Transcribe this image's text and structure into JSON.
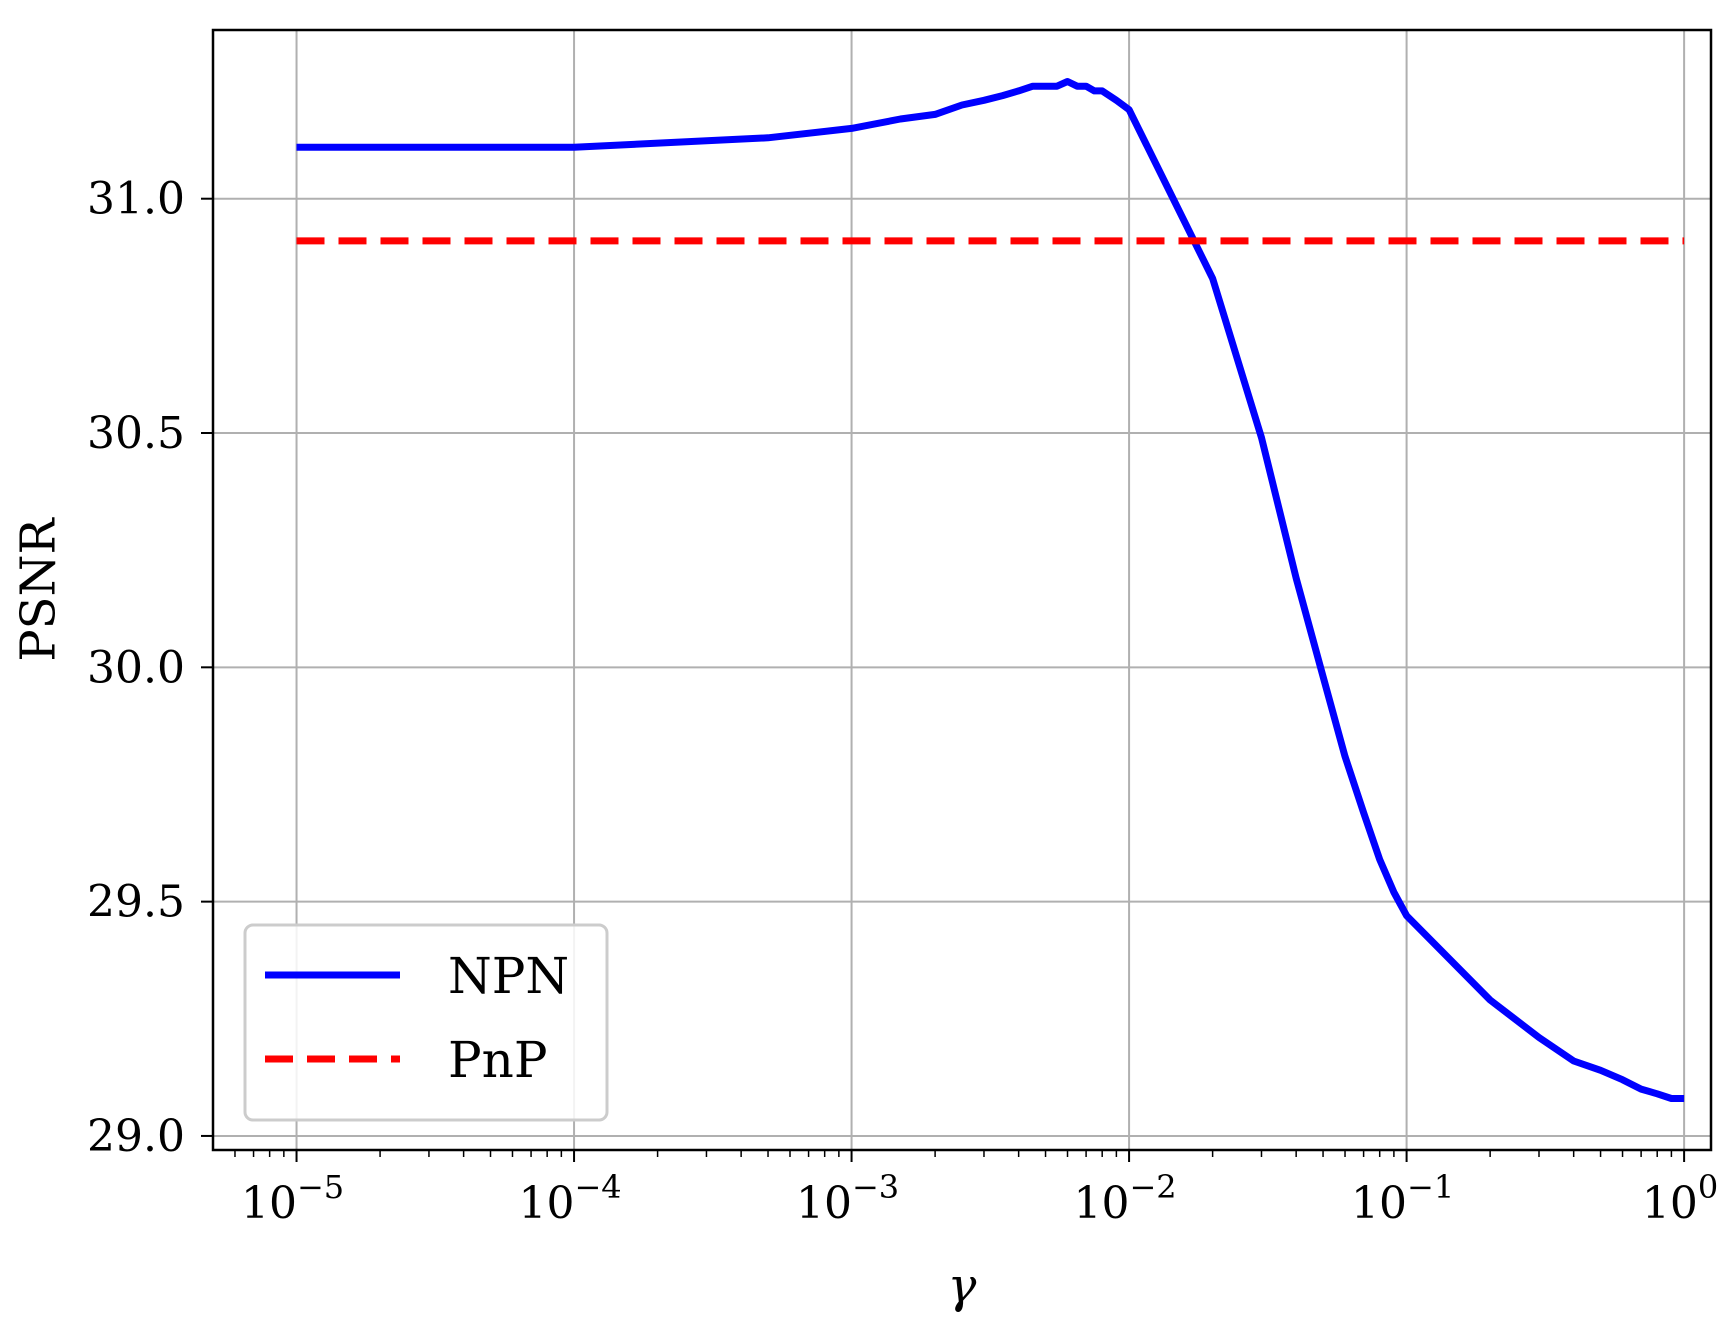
{
  "chart_data": {
    "type": "line",
    "title": "",
    "xlabel": "γ",
    "ylabel": "PSNR",
    "x_scale": "log",
    "xlim": [
      5e-06,
      1.25
    ],
    "ylim": [
      28.97,
      31.36
    ],
    "x_ticks": [
      {
        "value": 1e-05,
        "base": "10",
        "exp": "−5"
      },
      {
        "value": 0.0001,
        "base": "10",
        "exp": "−4"
      },
      {
        "value": 0.001,
        "base": "10",
        "exp": "−3"
      },
      {
        "value": 0.01,
        "base": "10",
        "exp": "−2"
      },
      {
        "value": 0.1,
        "base": "10",
        "exp": "−1"
      },
      {
        "value": 1,
        "base": "10",
        "exp": "0"
      }
    ],
    "y_ticks": [
      {
        "value": 29.0,
        "label": "29.0"
      },
      {
        "value": 29.5,
        "label": "29.5"
      },
      {
        "value": 30.0,
        "label": "30.0"
      },
      {
        "value": 30.5,
        "label": "30.5"
      },
      {
        "value": 31.0,
        "label": "31.0"
      }
    ],
    "grid": true,
    "legend_position": "lower-left",
    "series": [
      {
        "name": "NPN",
        "color": "#0000ff",
        "style": "solid",
        "x": [
          1e-05,
          0.0001,
          0.0005,
          0.001,
          0.0015,
          0.002,
          0.0025,
          0.003,
          0.0035,
          0.004,
          0.0045,
          0.005,
          0.0055,
          0.006,
          0.0065,
          0.007,
          0.0075,
          0.008,
          0.009,
          0.01,
          0.02,
          0.03,
          0.04,
          0.05,
          0.06,
          0.07,
          0.08,
          0.09,
          0.1,
          0.2,
          0.3,
          0.4,
          0.5,
          0.6,
          0.7,
          0.8,
          0.9,
          1.0
        ],
        "y": [
          31.11,
          31.11,
          31.13,
          31.15,
          31.17,
          31.18,
          31.2,
          31.21,
          31.22,
          31.23,
          31.24,
          31.24,
          31.24,
          31.25,
          31.24,
          31.24,
          31.23,
          31.23,
          31.21,
          31.19,
          30.83,
          30.49,
          30.19,
          29.98,
          29.81,
          29.69,
          29.59,
          29.52,
          29.47,
          29.29,
          29.21,
          29.16,
          29.14,
          29.12,
          29.1,
          29.09,
          29.08,
          29.08
        ]
      },
      {
        "name": "PnP",
        "color": "#ff0000",
        "style": "dashed",
        "x": [
          1e-05,
          1.0
        ],
        "y": [
          30.91,
          30.91
        ]
      }
    ]
  }
}
